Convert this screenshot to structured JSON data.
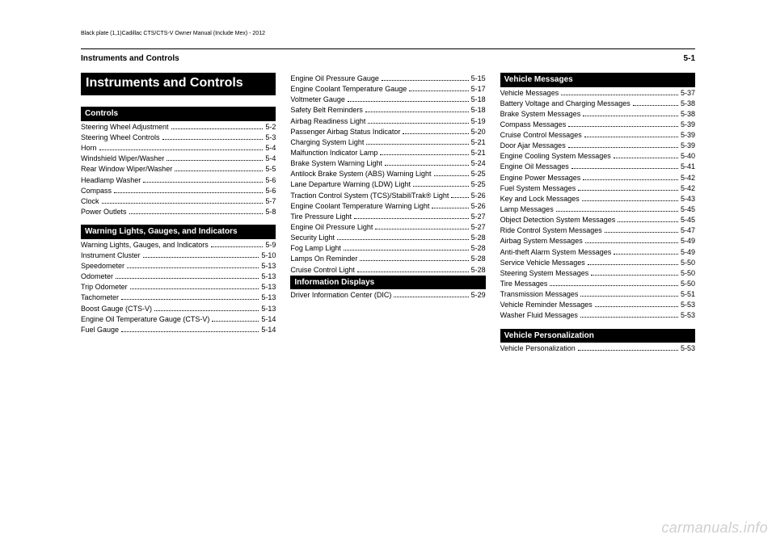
{
  "meta_line": "Black plate (1,1)Cadillac CTS/CTS-V Owner Manual (Include Mex) - 2012",
  "header": {
    "left": "Instruments and Controls",
    "right": "5-1"
  },
  "chapter_title": "Instruments and Controls",
  "col1": {
    "controls": {
      "title": "Controls",
      "items": [
        {
          "label": "Steering Wheel Adjustment",
          "page": "5-2"
        },
        {
          "label": "Steering Wheel Controls",
          "page": "5-3"
        },
        {
          "label": "Horn",
          "page": "5-4"
        },
        {
          "label": "Windshield Wiper/Washer",
          "page": "5-4"
        },
        {
          "label": "Rear Window Wiper/Washer",
          "page": "5-5"
        },
        {
          "label": "Headlamp Washer",
          "page": "5-6"
        },
        {
          "label": "Compass",
          "page": "5-6"
        },
        {
          "label": "Clock",
          "page": "5-7"
        },
        {
          "label": "Power Outlets",
          "page": "5-8"
        }
      ]
    },
    "warning": {
      "title": "Warning Lights, Gauges, and Indicators",
      "items": [
        {
          "label": "Warning Lights, Gauges, and Indicators",
          "page": "5-9"
        },
        {
          "label": "Instrument Cluster",
          "page": "5-10"
        },
        {
          "label": "Speedometer",
          "page": "5-13"
        },
        {
          "label": "Odometer",
          "page": "5-13"
        },
        {
          "label": "Trip Odometer",
          "page": "5-13"
        },
        {
          "label": "Tachometer",
          "page": "5-13"
        },
        {
          "label": "Boost Gauge (CTS-V)",
          "page": "5-13"
        },
        {
          "label": "Engine Oil Temperature Gauge (CTS-V)",
          "page": "5-14"
        },
        {
          "label": "Fuel Gauge",
          "page": "5-14"
        }
      ]
    }
  },
  "col2": {
    "items": [
      {
        "label": "Engine Oil Pressure Gauge",
        "page": "5-15"
      },
      {
        "label": "Engine Coolant Temperature Gauge",
        "page": "5-17"
      },
      {
        "label": "Voltmeter Gauge",
        "page": "5-18"
      },
      {
        "label": "Safety Belt Reminders",
        "page": "5-18"
      },
      {
        "label": "Airbag Readiness Light",
        "page": "5-19"
      },
      {
        "label": "Passenger Airbag Status Indicator",
        "page": "5-20"
      },
      {
        "label": "Charging System Light",
        "page": "5-21"
      },
      {
        "label": "Malfunction Indicator Lamp",
        "page": "5-21"
      },
      {
        "label": "Brake System Warning Light",
        "page": "5-24"
      },
      {
        "label": "Antilock Brake System (ABS) Warning Light",
        "page": "5-25"
      },
      {
        "label": "Lane Departure Warning (LDW) Light",
        "page": "5-25"
      },
      {
        "label": "Traction Control System (TCS)/StabiliTrak® Light",
        "page": "5-26"
      },
      {
        "label": "Engine Coolant Temperature Warning Light",
        "page": "5-26"
      },
      {
        "label": "Tire Pressure Light",
        "page": "5-27"
      },
      {
        "label": "Engine Oil Pressure Light",
        "page": "5-27"
      },
      {
        "label": "Security Light",
        "page": "5-28"
      },
      {
        "label": "Fog Lamp Light",
        "page": "5-28"
      },
      {
        "label": "Lamps On Reminder",
        "page": "5-28"
      },
      {
        "label": "Cruise Control Light",
        "page": "5-28"
      }
    ],
    "info_displays": {
      "title": "Information Displays",
      "items": [
        {
          "label": "Driver Information Center (DIC)",
          "page": "5-29"
        }
      ]
    }
  },
  "col3": {
    "vehicle_messages": {
      "title": "Vehicle Messages",
      "items": [
        {
          "label": "Vehicle Messages",
          "page": "5-37"
        },
        {
          "label": "Battery Voltage and Charging Messages",
          "page": "5-38"
        },
        {
          "label": "Brake System Messages",
          "page": "5-38"
        },
        {
          "label": "Compass Messages",
          "page": "5-39"
        },
        {
          "label": "Cruise Control Messages",
          "page": "5-39"
        },
        {
          "label": "Door Ajar Messages",
          "page": "5-39"
        },
        {
          "label": "Engine Cooling System Messages",
          "page": "5-40"
        },
        {
          "label": "Engine Oil Messages",
          "page": "5-41"
        },
        {
          "label": "Engine Power Messages",
          "page": "5-42"
        },
        {
          "label": "Fuel System Messages",
          "page": "5-42"
        },
        {
          "label": "Key and Lock Messages",
          "page": "5-43"
        },
        {
          "label": "Lamp Messages",
          "page": "5-45"
        },
        {
          "label": "Object Detection System Messages",
          "page": "5-45"
        },
        {
          "label": "Ride Control System Messages",
          "page": "5-47"
        },
        {
          "label": "Airbag System Messages",
          "page": "5-49"
        },
        {
          "label": "Anti-theft Alarm System Messages",
          "page": "5-49"
        },
        {
          "label": "Service Vehicle Messages",
          "page": "5-50"
        },
        {
          "label": "Steering System Messages",
          "page": "5-50"
        },
        {
          "label": "Tire Messages",
          "page": "5-50"
        },
        {
          "label": "Transmission Messages",
          "page": "5-51"
        },
        {
          "label": "Vehicle Reminder Messages",
          "page": "5-53"
        },
        {
          "label": "Washer Fluid Messages",
          "page": "5-53"
        }
      ]
    },
    "vehicle_personalization": {
      "title": "Vehicle Personalization",
      "items": [
        {
          "label": "Vehicle Personalization",
          "page": "5-53"
        }
      ]
    }
  },
  "watermark": "carmanuals.info"
}
